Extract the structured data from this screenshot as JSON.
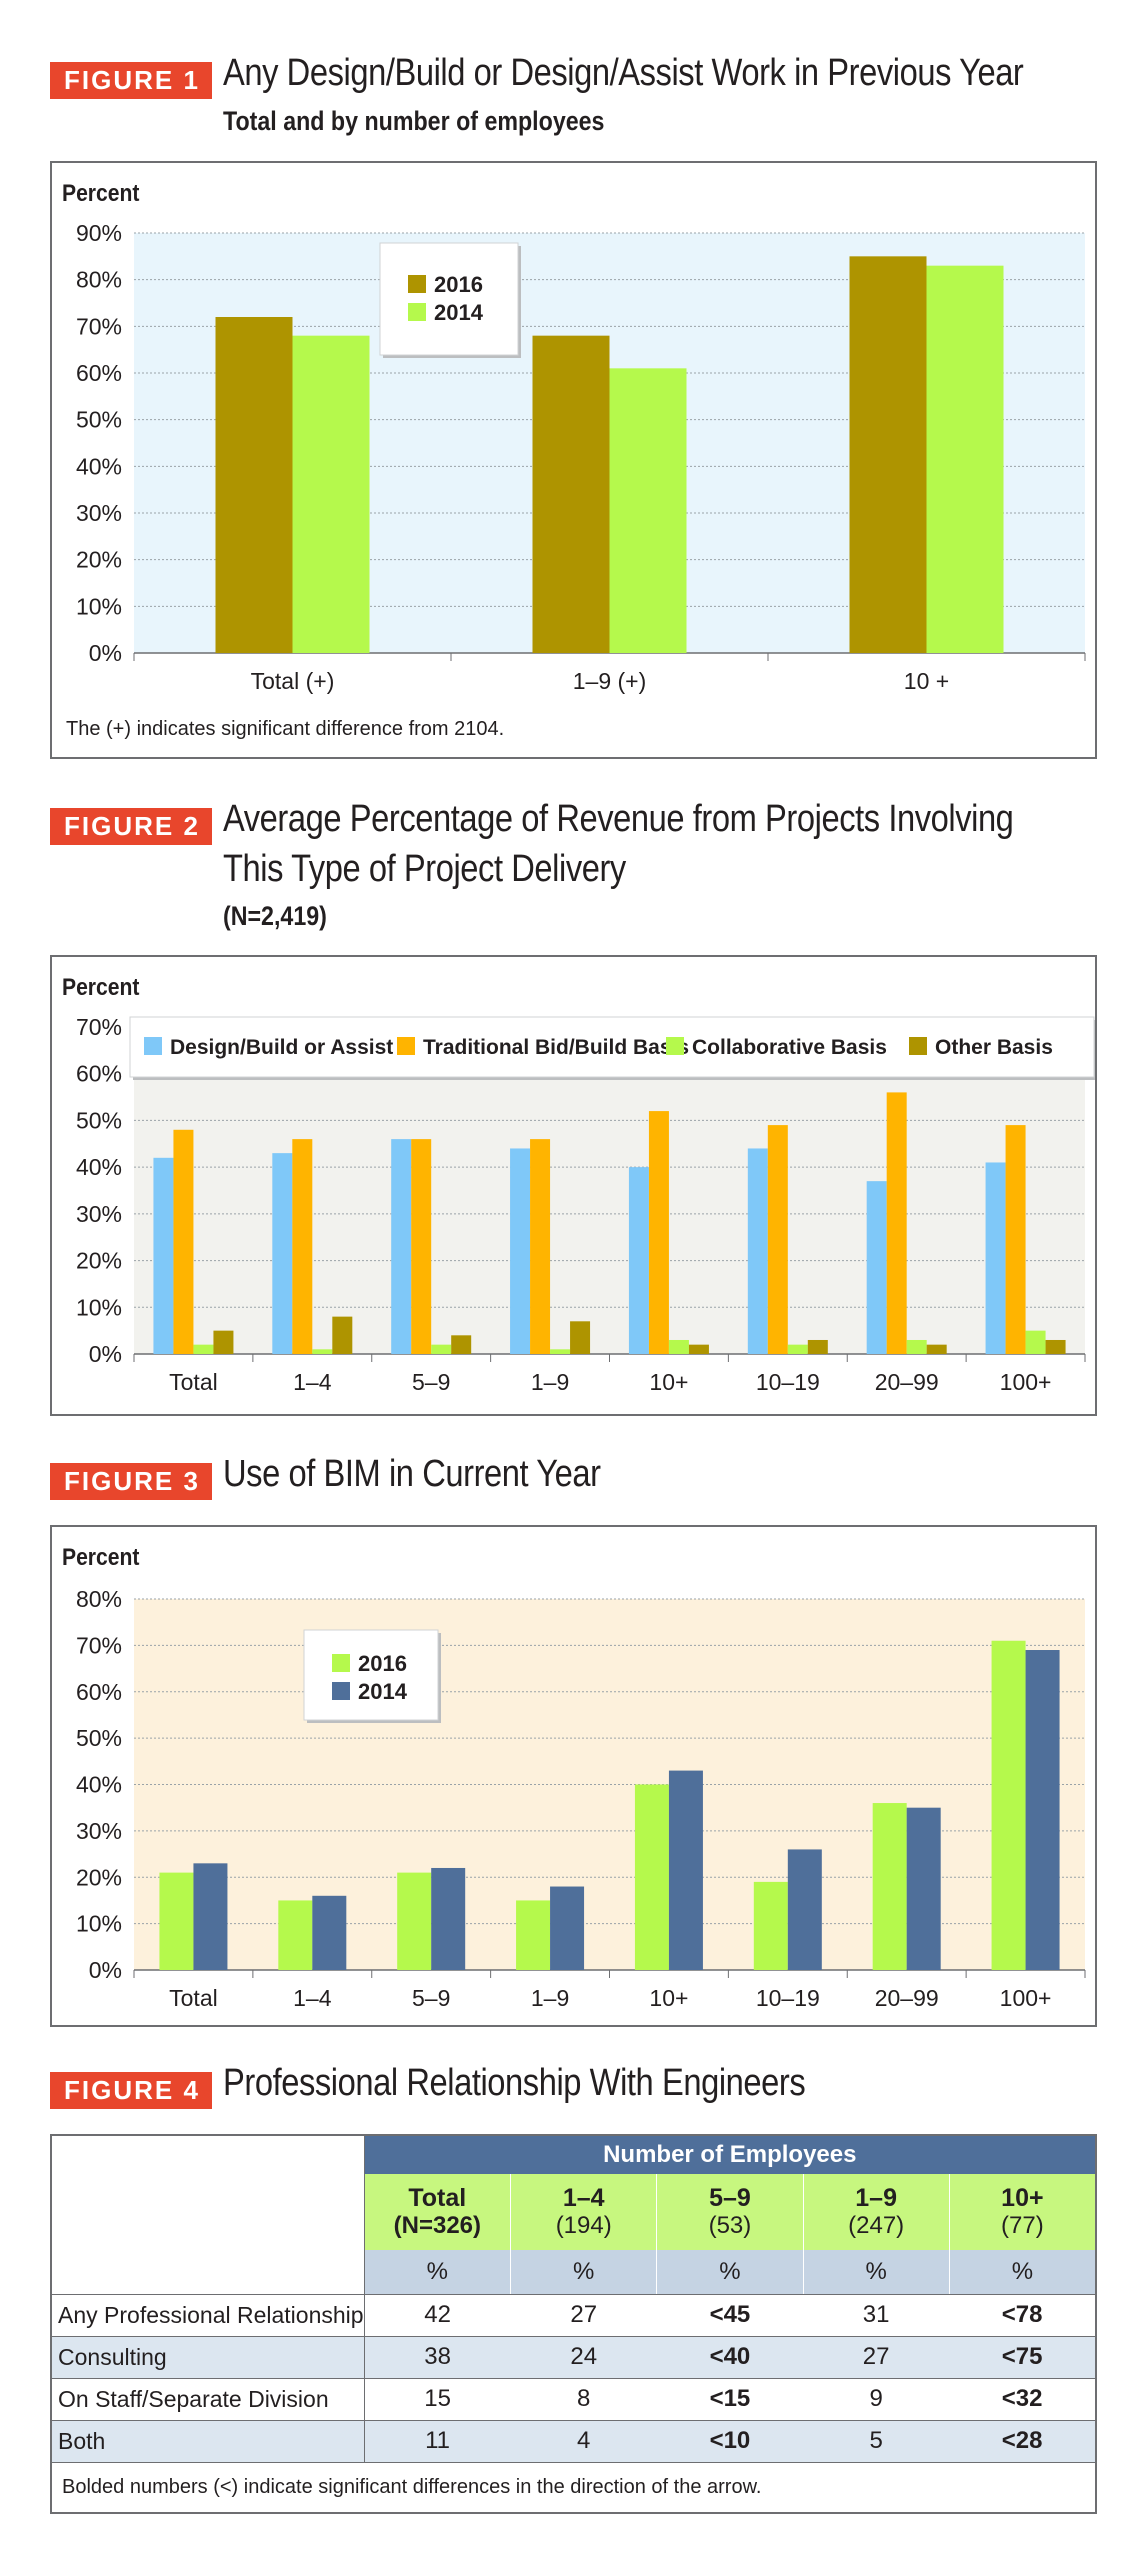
{
  "figures": {
    "f1": {
      "badge": "FIGURE 1",
      "title": "Any Design/Build or Design/Assist Work in Previous Year",
      "subtitle": "Total and by number of employees",
      "ylabel": "Percent",
      "note": "The (+) indicates significant difference from 2104."
    },
    "f2": {
      "badge": "FIGURE 2",
      "title_line1": "Average Percentage of Revenue from Projects Involving",
      "title_line2": "This Type of Project Delivery",
      "subtitle": "(N=2,419)",
      "ylabel": "Percent"
    },
    "f3": {
      "badge": "FIGURE 3",
      "title": "Use of BIM in Current Year",
      "ylabel": "Percent"
    },
    "f4": {
      "badge": "FIGURE 4",
      "title": "Professional Relationship With Engineers"
    }
  },
  "chart_data": [
    {
      "type": "bar",
      "title": "Any Design/Build or Design/Assist Work in Previous Year",
      "ylabel": "Percent",
      "ylim": [
        0,
        90
      ],
      "yticks": [
        "0%",
        "10%",
        "20%",
        "30%",
        "40%",
        "50%",
        "60%",
        "70%",
        "80%",
        "90%"
      ],
      "categories": [
        "Total (+)",
        "1–9 (+)",
        "10 +"
      ],
      "series": [
        {
          "name": "2016",
          "values": [
            72,
            68,
            85
          ],
          "color": "#ae9400"
        },
        {
          "name": "2014",
          "values": [
            68,
            61,
            83
          ],
          "color": "#b5f94c"
        }
      ],
      "background": "#e8f5fc",
      "grid": true,
      "legend": "top-left"
    },
    {
      "type": "bar",
      "title": "Average Percentage of Revenue from Projects Involving This Type of Project Delivery",
      "ylabel": "Percent",
      "ylim": [
        0,
        70
      ],
      "yticks": [
        "0%",
        "10%",
        "20%",
        "30%",
        "40%",
        "50%",
        "60%",
        "70%"
      ],
      "categories": [
        "Total",
        "1–4",
        "5–9",
        "1–9",
        "10+",
        "10–19",
        "20–99",
        "100+"
      ],
      "series": [
        {
          "name": "Design/Build or Assist",
          "values": [
            42,
            43,
            46,
            44,
            40,
            44,
            37,
            41
          ],
          "color": "#7fc8f8"
        },
        {
          "name": "Traditional Bid/Build Basis",
          "values": [
            48,
            46,
            46,
            46,
            52,
            49,
            56,
            49
          ],
          "color": "#ffb400"
        },
        {
          "name": "Collaborative Basis",
          "values": [
            2,
            1,
            2,
            1,
            3,
            2,
            3,
            5
          ],
          "color": "#b5f94c"
        },
        {
          "name": "Other Basis",
          "values": [
            5,
            8,
            4,
            7,
            2,
            3,
            2,
            3
          ],
          "color": "#ae9400"
        }
      ],
      "background": "#f2f2ee",
      "grid": true,
      "legend": "top"
    },
    {
      "type": "bar",
      "title": "Use of BIM in Current Year",
      "ylabel": "Percent",
      "ylim": [
        0,
        80
      ],
      "yticks": [
        "0%",
        "10%",
        "20%",
        "30%",
        "40%",
        "50%",
        "60%",
        "70%",
        "80%"
      ],
      "categories": [
        "Total",
        "1–4",
        "5–9",
        "1–9",
        "10+",
        "10–19",
        "20–99",
        "100+"
      ],
      "series": [
        {
          "name": "2016",
          "values": [
            21,
            15,
            21,
            15,
            40,
            19,
            36,
            71
          ],
          "color": "#b5f94c"
        },
        {
          "name": "2014",
          "values": [
            23,
            16,
            22,
            18,
            43,
            26,
            35,
            69
          ],
          "color": "#4f6f9a"
        }
      ],
      "background": "#fdf1dc",
      "grid": true,
      "legend": "top-left"
    },
    {
      "type": "table",
      "title": "Professional Relationship With Engineers",
      "group_header": "Number of Employees",
      "columns": [
        {
          "label": "Total",
          "n": "(N=326)",
          "bold": true
        },
        {
          "label": "1–4",
          "n": "(194)",
          "bold": false
        },
        {
          "label": "5–9",
          "n": "(53)",
          "bold": false
        },
        {
          "label": "1–9",
          "n": "(247)",
          "bold": false
        },
        {
          "label": "10+",
          "n": "(77)",
          "bold": false
        }
      ],
      "unit_row": [
        "%",
        "%",
        "%",
        "%",
        "%"
      ],
      "rows": [
        {
          "label": "Any Professional Relationship",
          "values": [
            "42",
            "27",
            "<45",
            "31",
            "<78"
          ]
        },
        {
          "label": "Consulting",
          "values": [
            "38",
            "24",
            "<40",
            "27",
            "<75"
          ]
        },
        {
          "label": "On Staff/Separate Division",
          "values": [
            "15",
            "8",
            "<15",
            "9",
            "<32"
          ]
        },
        {
          "label": "Both",
          "values": [
            "11",
            "4",
            "<10",
            "5",
            "<28"
          ]
        }
      ],
      "bold_columns": [
        2,
        4
      ],
      "note": "Bolded numbers (<) indicate significant differences in the direction of the arrow."
    }
  ]
}
